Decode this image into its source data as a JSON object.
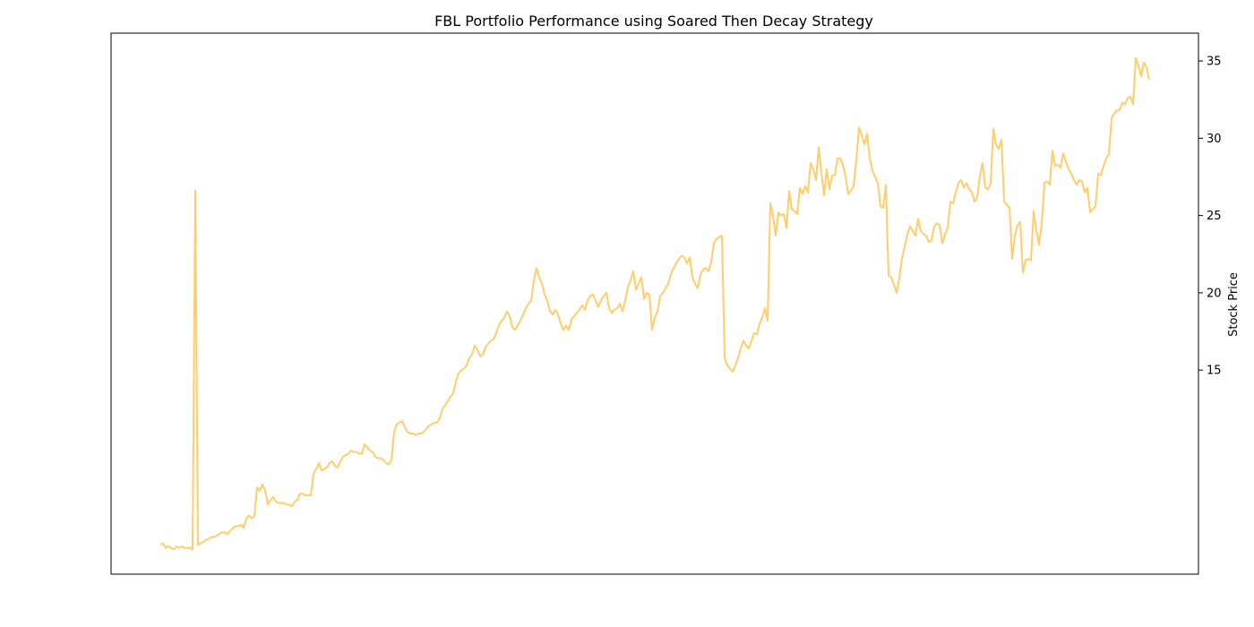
{
  "chart_data": {
    "type": "line",
    "title": "FBL Portfolio Performance using Soared Then Decay Strategy",
    "xlabel": "",
    "ylabel": "Stock Price",
    "y_axis_side": "right",
    "x_ticks_shown": false,
    "grid": false,
    "ylim": [
      1.8,
      36.8
    ],
    "yticks": [
      15,
      20,
      25,
      30,
      35
    ],
    "ytick_labels": [
      "15",
      "20",
      "25",
      "30",
      "35"
    ],
    "line_color": "#ffc85a",
    "series": [
      {
        "values": [
          3.7,
          3.8,
          3.5,
          3.6,
          3.5,
          3.4,
          3.6,
          3.5,
          3.6,
          3.5,
          3.5,
          3.5,
          3.4,
          26.6,
          3.7,
          3.8,
          3.9,
          4.0,
          4.1,
          4.2,
          4.2,
          4.3,
          4.4,
          4.5,
          4.5,
          4.4,
          4.6,
          4.8,
          4.9,
          4.9,
          5.0,
          4.8,
          5.4,
          5.6,
          5.4,
          5.6,
          7.4,
          7.2,
          7.6,
          7.2,
          6.3,
          6.6,
          6.8,
          6.5,
          6.4,
          6.4,
          6.4,
          6.3,
          6.3,
          6.2,
          6.5,
          6.6,
          7.0,
          7.0,
          6.9,
          6.9,
          6.9,
          8.3,
          8.6,
          9.0,
          8.5,
          8.6,
          8.7,
          9.0,
          9.1,
          8.8,
          8.7,
          9.1,
          9.4,
          9.5,
          9.6,
          9.8,
          9.7,
          9.7,
          9.6,
          9.6,
          10.2,
          10.0,
          9.8,
          9.7,
          9.4,
          9.3,
          9.3,
          9.2,
          9.0,
          8.9,
          9.2,
          11.0,
          11.5,
          11.6,
          11.7,
          11.3,
          11.0,
          10.9,
          10.9,
          10.8,
          10.9,
          10.9,
          11.0,
          11.2,
          11.4,
          11.5,
          11.6,
          11.6,
          11.9,
          12.5,
          12.7,
          13.0,
          13.3,
          13.5,
          14.3,
          14.8,
          15.0,
          15.1,
          15.3,
          15.8,
          16.0,
          16.6,
          16.3,
          15.9,
          16.0,
          16.5,
          16.7,
          16.9,
          17.0,
          17.4,
          17.9,
          18.2,
          18.4,
          18.8,
          18.5,
          17.8,
          17.6,
          17.9,
          18.2,
          18.6,
          19.0,
          19.3,
          19.5,
          20.8,
          21.6,
          21.0,
          20.6,
          19.9,
          19.5,
          18.8,
          18.6,
          18.9,
          18.6,
          18.0,
          17.6,
          17.9,
          17.6,
          18.3,
          18.5,
          18.7,
          18.9,
          19.2,
          18.9,
          19.5,
          19.8,
          19.9,
          19.5,
          19.1,
          19.5,
          19.8,
          20.0,
          19.0,
          18.7,
          18.9,
          19.0,
          19.3,
          18.8,
          19.5,
          20.4,
          20.8,
          21.4,
          20.2,
          20.6,
          21.0,
          19.6,
          20.0,
          19.9,
          17.6,
          18.4,
          18.8,
          19.8,
          20.0,
          20.3,
          20.6,
          21.2,
          21.6,
          21.9,
          22.2,
          22.4,
          22.3,
          21.9,
          22.3,
          21.0,
          20.6,
          20.3,
          21.2,
          21.5,
          21.6,
          21.4,
          22.0,
          23.2,
          23.5,
          23.6,
          23.7,
          15.8,
          15.3,
          15.1,
          14.9,
          15.3,
          15.8,
          16.4,
          16.9,
          16.6,
          16.4,
          16.9,
          17.4,
          17.3,
          18.0,
          18.4,
          19.0,
          18.2,
          25.8,
          25.0,
          23.7,
          25.2,
          25.0,
          25.1,
          24.2,
          26.6,
          25.4,
          25.3,
          25.1,
          26.8,
          26.4,
          26.9,
          26.5,
          28.4,
          28.0,
          27.3,
          29.4,
          27.8,
          26.3,
          28.0,
          26.7,
          27.6,
          27.6,
          28.7,
          28.7,
          28.3,
          27.5,
          26.4,
          26.6,
          26.9,
          28.6,
          30.7,
          30.2,
          29.6,
          30.3,
          28.7,
          27.9,
          27.5,
          27.1,
          25.6,
          25.5,
          27.0,
          21.1,
          21.0,
          20.5,
          20.0,
          21.0,
          22.2,
          23.0,
          23.8,
          24.3,
          24.0,
          23.7,
          24.8,
          24.0,
          23.8,
          23.7,
          23.3,
          23.4,
          24.3,
          24.5,
          24.4,
          23.2,
          23.8,
          24.2,
          25.9,
          25.8,
          26.5,
          27.1,
          27.3,
          26.8,
          27.1,
          26.7,
          26.5,
          25.9,
          26.2,
          27.6,
          28.4,
          26.8,
          26.7,
          27.1,
          30.6,
          29.6,
          29.3,
          29.9,
          25.9,
          25.7,
          25.5,
          22.2,
          23.7,
          24.4,
          24.6,
          21.3,
          22.1,
          22.2,
          22.1,
          25.3,
          24.0,
          23.1,
          24.5,
          27.1,
          27.2,
          27.0,
          29.2,
          28.2,
          28.3,
          28.1,
          29.0,
          28.5,
          28.0,
          27.7,
          27.3,
          27.0,
          27.3,
          27.2,
          26.5,
          26.8,
          25.2,
          25.4,
          25.6,
          27.7,
          27.6,
          28.2,
          28.7,
          29.0,
          31.3,
          31.6,
          31.8,
          31.8,
          32.3,
          32.2,
          32.6,
          32.7,
          32.2,
          35.2,
          34.7,
          34.0,
          34.9,
          34.6,
          33.8
        ]
      }
    ]
  }
}
